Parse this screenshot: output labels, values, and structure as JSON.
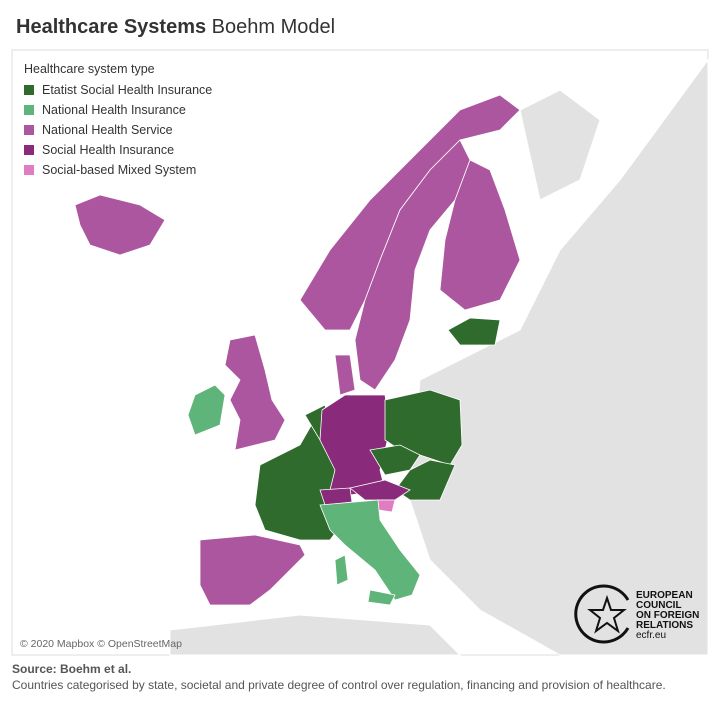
{
  "header": {
    "title_bold": "Healthcare Systems",
    "title_rest": "Boehm Model"
  },
  "legend": {
    "title": "Healthcare system type",
    "items": [
      {
        "label": "Etatist Social Health Insurance",
        "color": "#2f6b2c"
      },
      {
        "label": "National Health Insurance",
        "color": "#5fb479"
      },
      {
        "label": "National Health Service",
        "color": "#ad56a0"
      },
      {
        "label": "Social Health Insurance",
        "color": "#8a2a7a"
      },
      {
        "label": "Social-based Mixed System",
        "color": "#e07cc2"
      }
    ]
  },
  "map": {
    "attribution": "© 2020 Mapbox © OpenStreetMap"
  },
  "logo": {
    "lines": [
      "EUROPEAN",
      "COUNCIL",
      "ON FOREIGN",
      "RELATIONS"
    ],
    "url": "ecfr.eu"
  },
  "footer": {
    "source": "Source: Boehm et al.",
    "note": "Countries categorised by state, societal and private degree of control over regulation, financing and provision of healthcare."
  }
}
